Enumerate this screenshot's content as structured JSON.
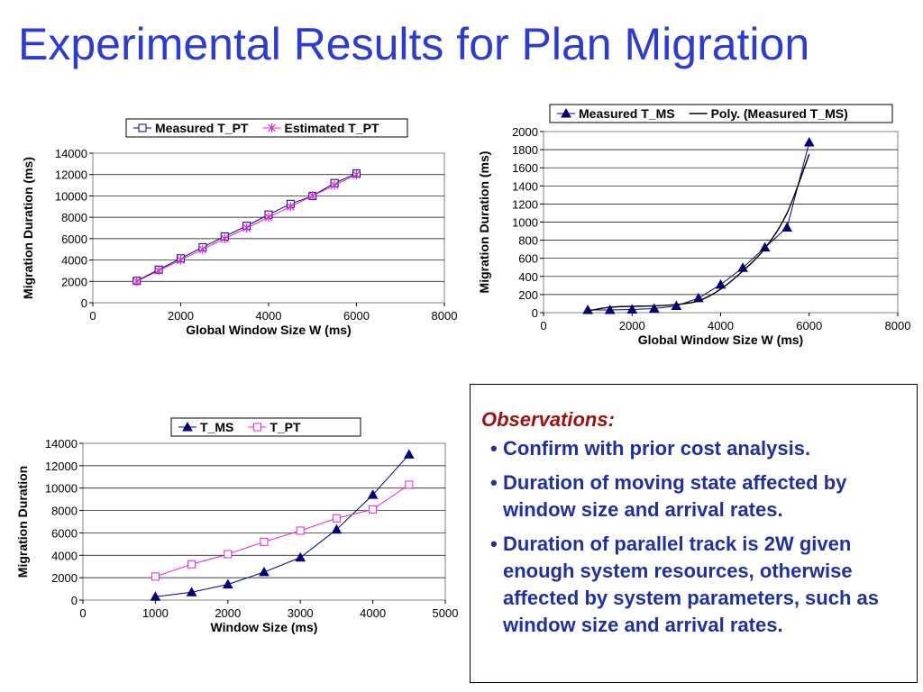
{
  "title": "Experimental Results for Plan Migration",
  "colors": {
    "title": "#2b3bd6",
    "navy": "#000080",
    "magenta": "#e020e0",
    "observations_heading": "#a01010",
    "observations_text": "#2030a0"
  },
  "observations": {
    "heading": "Observations:",
    "items": [
      "Confirm with prior cost analysis.",
      "Duration of moving state affected by window size and arrival rates.",
      "Duration of parallel track is 2W given enough system resources, otherwise affected by system parameters, such as window size and arrival rates."
    ]
  },
  "chart_data": [
    {
      "type": "line",
      "xlabel": "Global Window Size W (ms)",
      "ylabel": "Migration Duration (ms)",
      "xlim": [
        0,
        8000
      ],
      "ylim": [
        0,
        14000
      ],
      "xticks": [
        0,
        2000,
        4000,
        6000,
        8000
      ],
      "yticks": [
        0,
        2000,
        4000,
        6000,
        8000,
        10000,
        12000,
        14000
      ],
      "grid": "horizontal",
      "legend_position": "top",
      "series": [
        {
          "name": "Measured T_PT",
          "marker": "square",
          "color": "#000080",
          "x": [
            1000,
            1500,
            2000,
            2500,
            3000,
            3500,
            4000,
            4500,
            5000,
            5500,
            6000
          ],
          "values": [
            2050,
            3100,
            4150,
            5200,
            6200,
            7200,
            8250,
            9250,
            10000,
            11200,
            12100
          ]
        },
        {
          "name": "Estimated T_PT",
          "marker": "asterisk",
          "color": "#e020e0",
          "x": [
            1000,
            1500,
            2000,
            2500,
            3000,
            3500,
            4000,
            4500,
            5000,
            5500,
            6000
          ],
          "values": [
            2000,
            3000,
            4000,
            5000,
            6000,
            7000,
            8000,
            9000,
            10000,
            11000,
            12000
          ]
        }
      ]
    },
    {
      "type": "line",
      "xlabel": "Global Window Size W (ms)",
      "ylabel": "Migration Duration (ms)",
      "xlim": [
        0,
        8000
      ],
      "ylim": [
        0,
        2000
      ],
      "xticks": [
        0,
        2000,
        4000,
        6000,
        8000
      ],
      "yticks": [
        0,
        200,
        400,
        600,
        800,
        1000,
        1200,
        1400,
        1600,
        1800,
        2000
      ],
      "grid": "horizontal",
      "legend_position": "top",
      "series": [
        {
          "name": "Measured T_MS",
          "marker": "triangle",
          "color": "#000080",
          "x": [
            1000,
            1500,
            2000,
            2500,
            3000,
            3500,
            4000,
            4500,
            5000,
            5500,
            6000
          ],
          "values": [
            30,
            30,
            35,
            45,
            75,
            160,
            310,
            495,
            720,
            940,
            1880
          ]
        },
        {
          "name": "Poly. (Measured T_MS)",
          "marker": "none",
          "color": "#000000",
          "x": [
            1000,
            1500,
            2000,
            2500,
            3000,
            3500,
            4000,
            4500,
            5000,
            5500,
            6000
          ],
          "values": [
            20,
            60,
            70,
            75,
            90,
            130,
            260,
            460,
            710,
            1100,
            1750
          ]
        }
      ]
    },
    {
      "type": "line",
      "xlabel": "Window Size (ms)",
      "ylabel": "Migration Duration",
      "xlim": [
        0,
        5000
      ],
      "ylim": [
        0,
        14000
      ],
      "xticks": [
        0,
        1000,
        2000,
        3000,
        4000,
        5000
      ],
      "yticks": [
        0,
        2000,
        4000,
        6000,
        8000,
        10000,
        12000,
        14000
      ],
      "grid": "horizontal",
      "legend_position": "top",
      "series": [
        {
          "name": "T_MS",
          "marker": "triangle",
          "color": "#000080",
          "x": [
            1000,
            1500,
            2000,
            2500,
            3000,
            3500,
            4000,
            4500
          ],
          "values": [
            300,
            700,
            1400,
            2500,
            3800,
            6300,
            9400,
            13000
          ]
        },
        {
          "name": "T_PT",
          "marker": "square",
          "color": "#e020e0",
          "x": [
            1000,
            1500,
            2000,
            2500,
            3000,
            3500,
            4000,
            4500
          ],
          "values": [
            2100,
            3200,
            4100,
            5200,
            6200,
            7300,
            8100,
            10300
          ]
        }
      ]
    }
  ]
}
